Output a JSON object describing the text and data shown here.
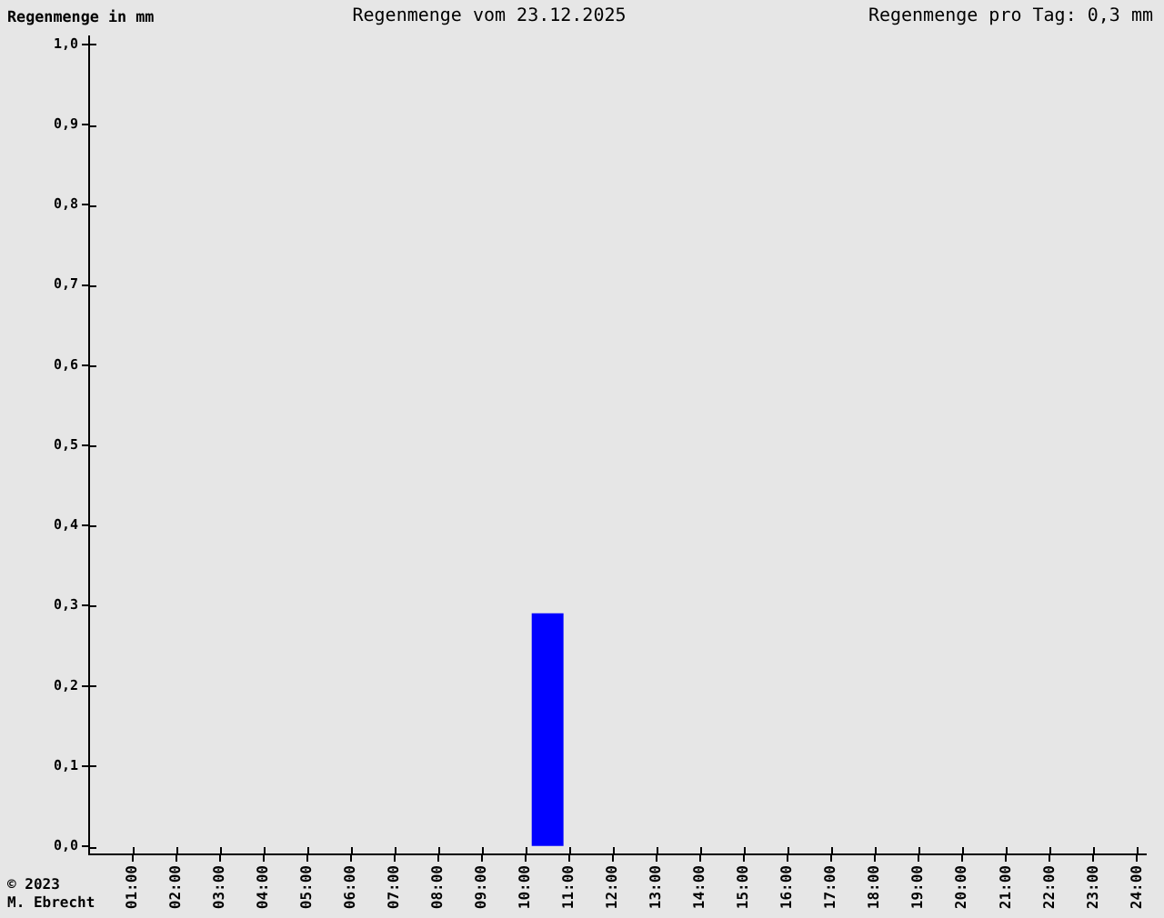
{
  "chart_data": {
    "type": "bar",
    "title": "Regenmenge vom 23.12.2025",
    "ylabel": "Regenmenge in mm",
    "annotations": [
      "Regenmenge pro Tag: 0,3 mm",
      "© 2023",
      "M. Ebrecht"
    ],
    "x": [
      10.5
    ],
    "values": [
      0.29
    ],
    "color": "#0000ff",
    "xlim": [
      0,
      24.2
    ],
    "xticks": [
      {
        "value": 1,
        "label": "01:00"
      },
      {
        "value": 2,
        "label": "02:00"
      },
      {
        "value": 3,
        "label": "03:00"
      },
      {
        "value": 4,
        "label": "04:00"
      },
      {
        "value": 5,
        "label": "05:00"
      },
      {
        "value": 6,
        "label": "06:00"
      },
      {
        "value": 7,
        "label": "07:00"
      },
      {
        "value": 8,
        "label": "08:00"
      },
      {
        "value": 9,
        "label": "09:00"
      },
      {
        "value": 10,
        "label": "10:00"
      },
      {
        "value": 11,
        "label": "11:00"
      },
      {
        "value": 12,
        "label": "12:00"
      },
      {
        "value": 13,
        "label": "13:00"
      },
      {
        "value": 14,
        "label": "14:00"
      },
      {
        "value": 15,
        "label": "15:00"
      },
      {
        "value": 16,
        "label": "16:00"
      },
      {
        "value": 17,
        "label": "17:00"
      },
      {
        "value": 18,
        "label": "18:00"
      },
      {
        "value": 19,
        "label": "19:00"
      },
      {
        "value": 20,
        "label": "20:00"
      },
      {
        "value": 21,
        "label": "21:00"
      },
      {
        "value": 22,
        "label": "22:00"
      },
      {
        "value": 23,
        "label": "23:00"
      },
      {
        "value": 24,
        "label": "24:00"
      }
    ],
    "ylim": [
      -0.01,
      1.01
    ],
    "yticks": [
      {
        "value": 0,
        "label": "0,0"
      },
      {
        "value": 0.1,
        "label": "0,1"
      },
      {
        "value": 0.2,
        "label": "0,2"
      },
      {
        "value": 0.3,
        "label": "0,3"
      },
      {
        "value": 0.4,
        "label": "0,4"
      },
      {
        "value": 0.5,
        "label": "0,5"
      },
      {
        "value": 0.6,
        "label": "0,6"
      },
      {
        "value": 0.7,
        "label": "0,7"
      },
      {
        "value": 0.8,
        "label": "0,8"
      },
      {
        "value": 0.9,
        "label": "0,9"
      },
      {
        "value": 1,
        "label": "1,0"
      }
    ]
  }
}
